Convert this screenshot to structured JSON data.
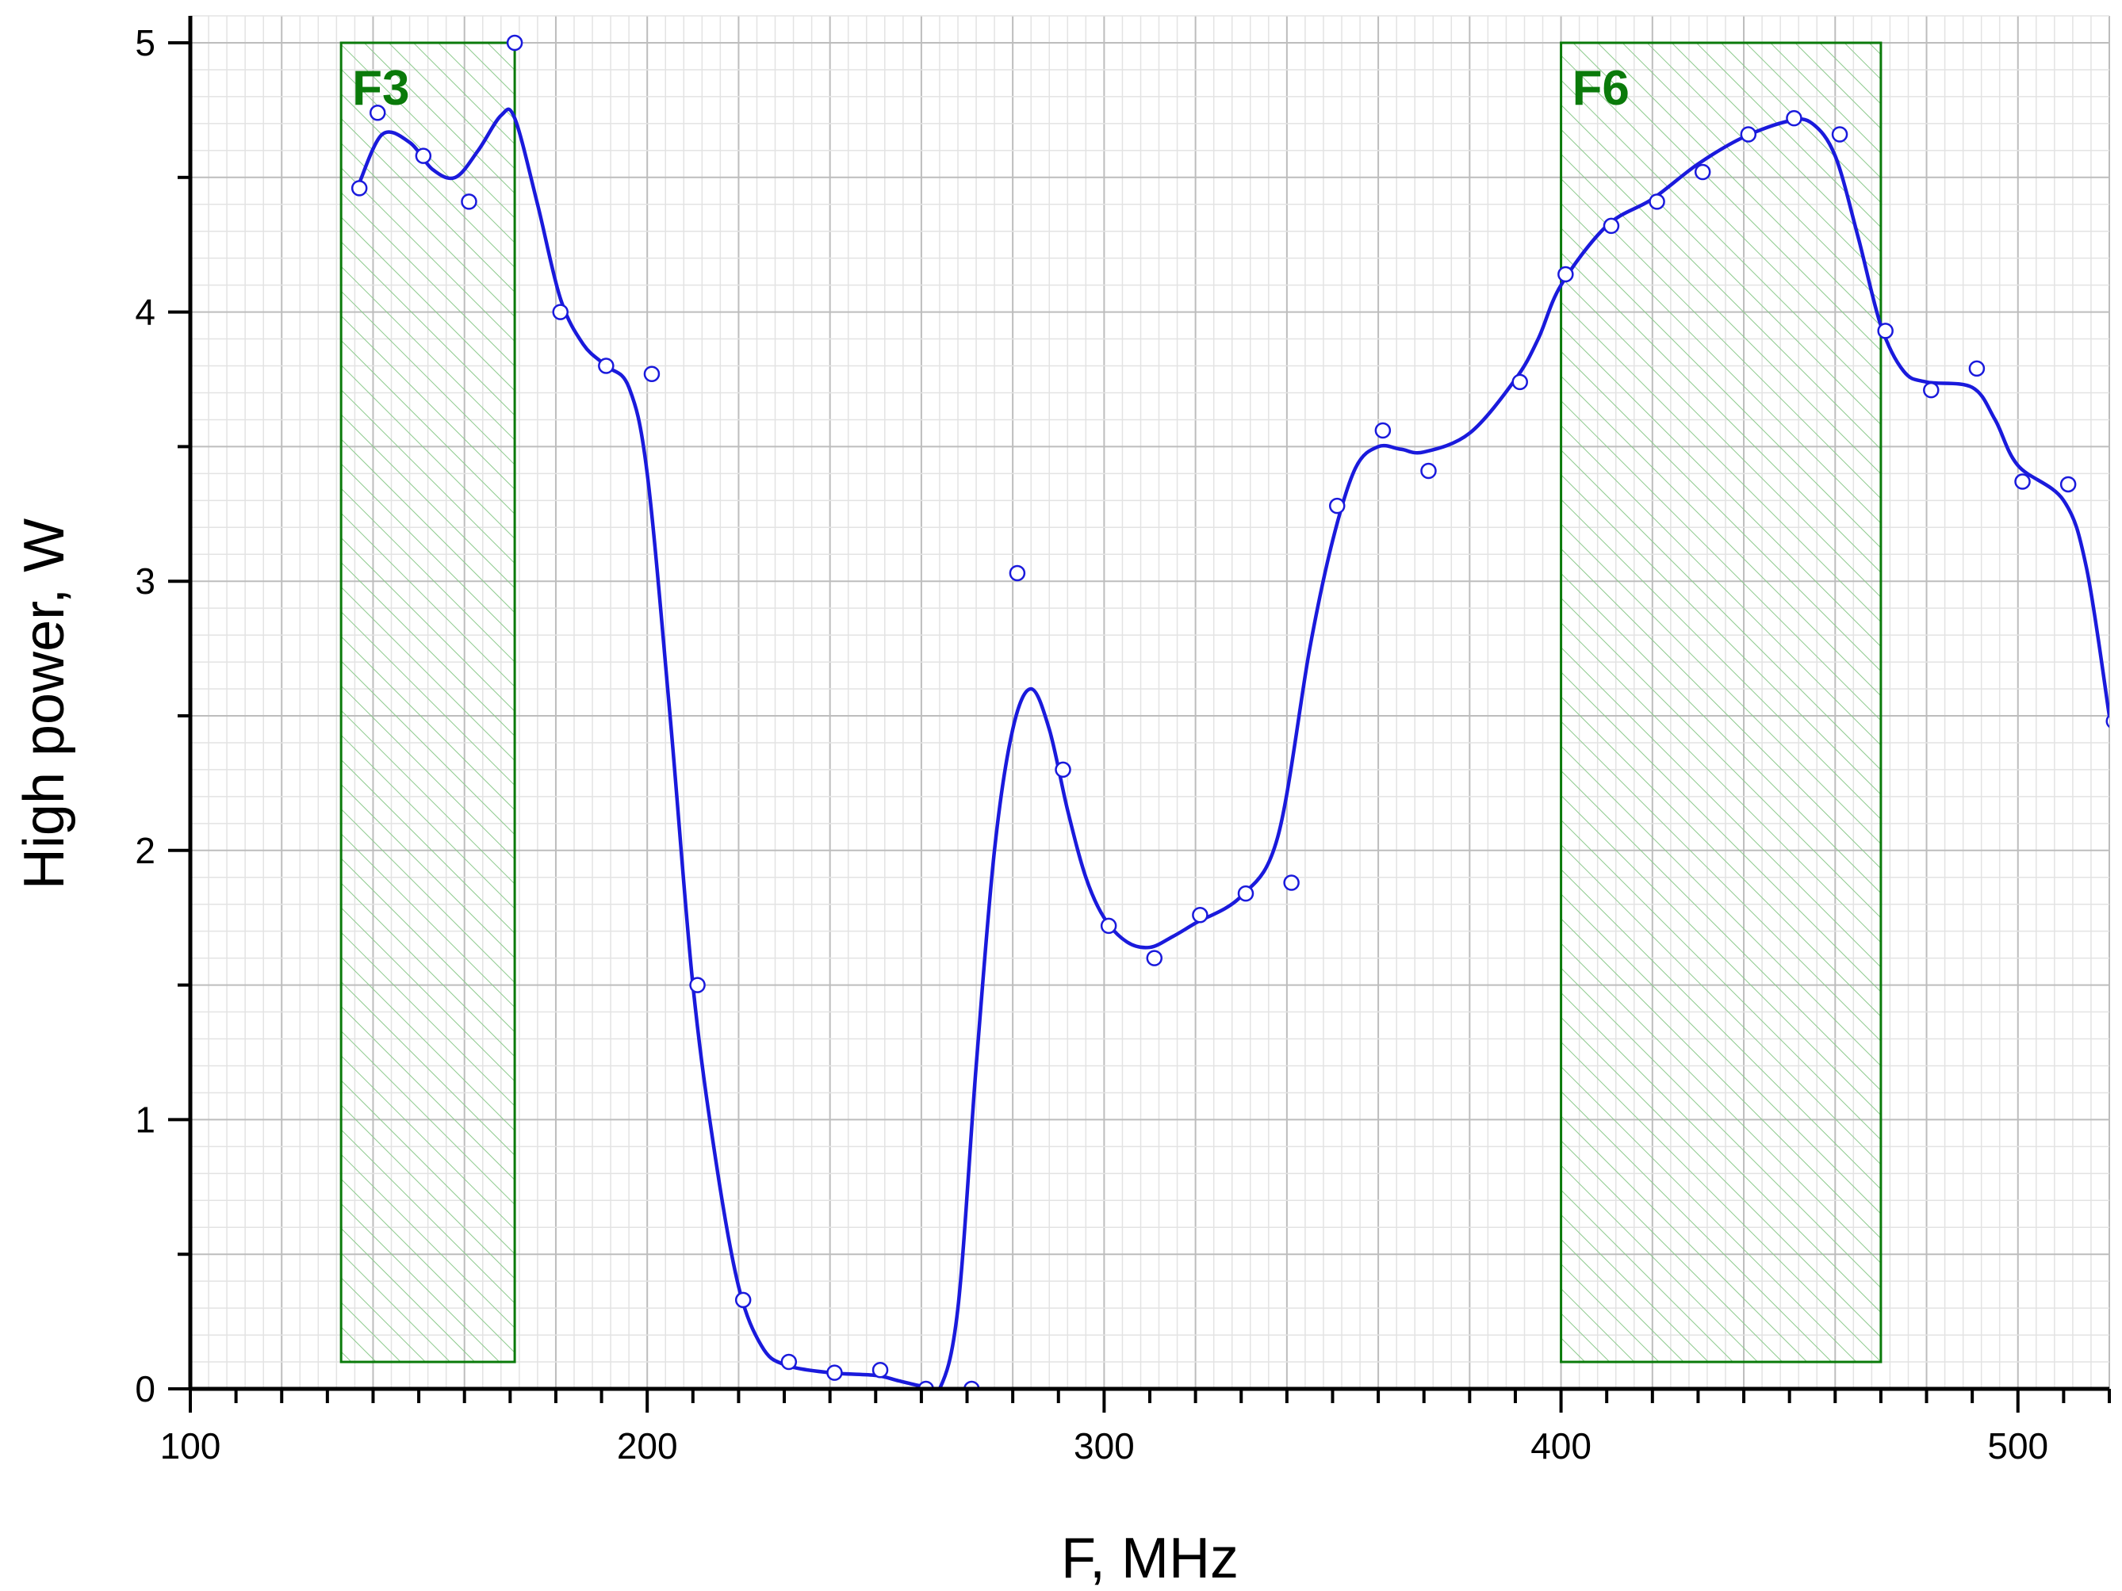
{
  "chart_data": {
    "type": "line",
    "title": "",
    "xlabel": "F, MHz",
    "ylabel": "High power, W",
    "xlim": [
      100,
      520
    ],
    "ylim": [
      0,
      5
    ],
    "x_ticks": [
      100,
      200,
      300,
      400,
      500
    ],
    "y_ticks": [
      0,
      1,
      2,
      3,
      4,
      5
    ],
    "grid": true,
    "colors": {
      "series": "#1a1adc",
      "band": "#0a7a0a",
      "band_fill": "#9ad09a"
    },
    "bands": [
      {
        "label": "F3",
        "x_start": 133,
        "x_end": 171,
        "y_start": 0.1,
        "y_end": 5
      },
      {
        "label": "F6",
        "x_start": 400,
        "x_end": 470,
        "y_start": 0.1,
        "y_end": 5
      }
    ],
    "series": [
      {
        "style": "markers",
        "marker": "open-circle",
        "x": [
          137,
          141,
          151,
          161,
          171,
          181,
          191,
          201,
          211,
          221,
          231,
          241,
          251,
          261,
          271,
          281,
          291,
          301,
          311,
          321,
          331,
          341,
          351,
          361,
          371,
          391,
          401,
          411,
          421,
          431,
          441,
          451,
          461,
          471,
          481,
          491,
          501,
          511,
          521
        ],
        "values": [
          4.46,
          4.74,
          4.58,
          4.41,
          5.0,
          4.0,
          3.8,
          3.77,
          1.5,
          0.33,
          0.1,
          0.06,
          0.07,
          0.0,
          0.0,
          3.03,
          2.3,
          1.72,
          1.6,
          1.76,
          1.84,
          1.88,
          3.28,
          3.56,
          3.41,
          3.74,
          4.14,
          4.32,
          4.41,
          4.52,
          4.66,
          4.72,
          4.66,
          3.93,
          3.71,
          3.79,
          3.37,
          3.36,
          2.48
        ]
      },
      {
        "style": "smooth-line",
        "x": [
          137,
          142,
          148,
          153,
          158,
          163,
          168,
          171,
          176,
          181,
          186,
          191,
          196,
          200,
          205,
          210,
          215,
          220,
          225,
          230,
          240,
          250,
          255,
          260,
          264,
          268,
          272,
          276,
          280,
          284,
          288,
          292,
          296,
          300,
          305,
          310,
          315,
          320,
          330,
          338,
          345,
          350,
          355,
          360,
          365,
          370,
          380,
          390,
          395,
          400,
          410,
          420,
          430,
          440,
          450,
          455,
          460,
          465,
          470,
          475,
          480,
          490,
          495,
          500,
          510,
          515,
          520
        ],
        "values": [
          4.48,
          4.66,
          4.63,
          4.53,
          4.5,
          4.6,
          4.73,
          4.72,
          4.4,
          4.05,
          3.88,
          3.8,
          3.72,
          3.4,
          2.5,
          1.5,
          0.85,
          0.38,
          0.16,
          0.09,
          0.06,
          0.05,
          0.03,
          0.01,
          0.0,
          0.3,
          1.2,
          2.0,
          2.45,
          2.6,
          2.45,
          2.15,
          1.9,
          1.75,
          1.66,
          1.64,
          1.68,
          1.73,
          1.83,
          2.05,
          2.75,
          3.15,
          3.42,
          3.5,
          3.49,
          3.48,
          3.55,
          3.75,
          3.9,
          4.1,
          4.32,
          4.42,
          4.55,
          4.65,
          4.71,
          4.7,
          4.58,
          4.28,
          3.95,
          3.78,
          3.74,
          3.72,
          3.6,
          3.43,
          3.3,
          3.05,
          2.5
        ]
      }
    ]
  }
}
